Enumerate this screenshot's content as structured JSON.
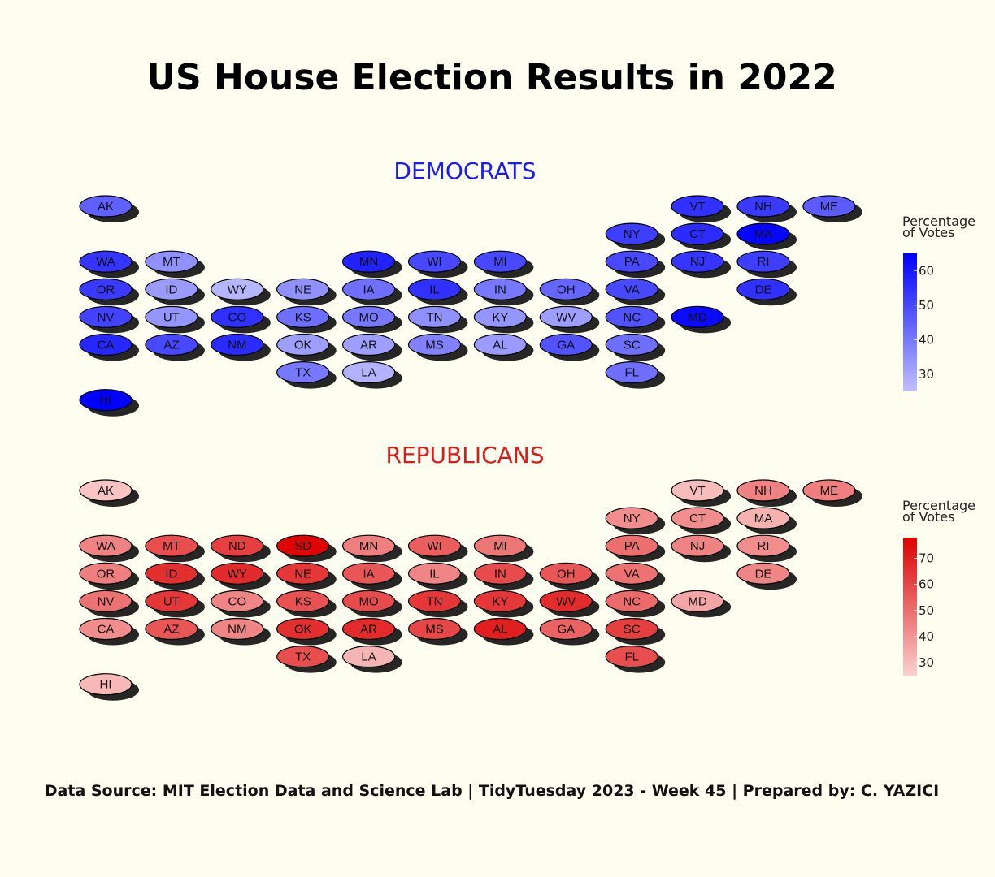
{
  "title": "US House Election Results in 2022",
  "footer": "Data Source: MIT Election Data and Science Lab | TidyTuesday 2023 - Week 45 | Prepared by: C. YAZICI",
  "chart_data": [
    {
      "type": "heatmap",
      "title": "DEMOCRATS",
      "title_color": "#1a1aff",
      "legend": {
        "title": "Percentage of Votes",
        "ticks": [
          30,
          40,
          50,
          60
        ],
        "range": [
          25,
          65
        ],
        "color_low": "#c0c0ff",
        "color_high": "#0000ff"
      },
      "states": [
        {
          "state": "AK",
          "col": 0,
          "row": 0,
          "value": 45
        },
        {
          "state": "VT",
          "col": 9,
          "row": 0,
          "value": 55
        },
        {
          "state": "NH",
          "col": 10,
          "row": 0,
          "value": 53
        },
        {
          "state": "ME",
          "col": 11,
          "row": 0,
          "value": 46
        },
        {
          "state": "NY",
          "col": 8,
          "row": 1,
          "value": 52
        },
        {
          "state": "CT",
          "col": 9,
          "row": 1,
          "value": 56
        },
        {
          "state": "MA",
          "col": 10,
          "row": 1,
          "value": 64
        },
        {
          "state": "WA",
          "col": 0,
          "row": 2,
          "value": 54
        },
        {
          "state": "MT",
          "col": 1,
          "row": 2,
          "value": 35
        },
        {
          "state": "MN",
          "col": 4,
          "row": 2,
          "value": 58
        },
        {
          "state": "WI",
          "col": 5,
          "row": 2,
          "value": 50
        },
        {
          "state": "MI",
          "col": 6,
          "row": 2,
          "value": 50
        },
        {
          "state": "PA",
          "col": 8,
          "row": 2,
          "value": 50
        },
        {
          "state": "NJ",
          "col": 9,
          "row": 2,
          "value": 54
        },
        {
          "state": "RI",
          "col": 10,
          "row": 2,
          "value": 52
        },
        {
          "state": "OR",
          "col": 0,
          "row": 3,
          "value": 53
        },
        {
          "state": "ID",
          "col": 1,
          "row": 3,
          "value": 33
        },
        {
          "state": "WY",
          "col": 2,
          "row": 3,
          "value": 27
        },
        {
          "state": "NE",
          "col": 3,
          "row": 3,
          "value": 35
        },
        {
          "state": "IA",
          "col": 4,
          "row": 3,
          "value": 42
        },
        {
          "state": "IL",
          "col": 5,
          "row": 3,
          "value": 55
        },
        {
          "state": "IN",
          "col": 6,
          "row": 3,
          "value": 40
        },
        {
          "state": "OH",
          "col": 7,
          "row": 3,
          "value": 44
        },
        {
          "state": "VA",
          "col": 8,
          "row": 3,
          "value": 50
        },
        {
          "state": "DE",
          "col": 10,
          "row": 3,
          "value": 55
        },
        {
          "state": "NV",
          "col": 0,
          "row": 4,
          "value": 51
        },
        {
          "state": "UT",
          "col": 1,
          "row": 4,
          "value": 34
        },
        {
          "state": "CO",
          "col": 2,
          "row": 4,
          "value": 55
        },
        {
          "state": "KS",
          "col": 3,
          "row": 4,
          "value": 42
        },
        {
          "state": "MO",
          "col": 4,
          "row": 4,
          "value": 40
        },
        {
          "state": "TN",
          "col": 5,
          "row": 4,
          "value": 35
        },
        {
          "state": "KY",
          "col": 6,
          "row": 4,
          "value": 34
        },
        {
          "state": "WV",
          "col": 7,
          "row": 4,
          "value": 32
        },
        {
          "state": "NC",
          "col": 8,
          "row": 4,
          "value": 48
        },
        {
          "state": "MD",
          "col": 9,
          "row": 4,
          "value": 63
        },
        {
          "state": "CA",
          "col": 0,
          "row": 5,
          "value": 57
        },
        {
          "state": "AZ",
          "col": 1,
          "row": 5,
          "value": 50
        },
        {
          "state": "NM",
          "col": 2,
          "row": 5,
          "value": 56
        },
        {
          "state": "OK",
          "col": 3,
          "row": 5,
          "value": 32
        },
        {
          "state": "AR",
          "col": 4,
          "row": 5,
          "value": 32
        },
        {
          "state": "MS",
          "col": 5,
          "row": 5,
          "value": 38
        },
        {
          "state": "AL",
          "col": 6,
          "row": 5,
          "value": 33
        },
        {
          "state": "GA",
          "col": 7,
          "row": 5,
          "value": 48
        },
        {
          "state": "SC",
          "col": 8,
          "row": 5,
          "value": 42
        },
        {
          "state": "TX",
          "col": 3,
          "row": 6,
          "value": 40
        },
        {
          "state": "LA",
          "col": 4,
          "row": 6,
          "value": 28
        },
        {
          "state": "FL",
          "col": 8,
          "row": 6,
          "value": 42
        },
        {
          "state": "HI",
          "col": 0,
          "row": 7,
          "value": 65
        }
      ]
    },
    {
      "type": "heatmap",
      "title": "REPUBLICANS",
      "title_color": "#dd1a1a",
      "legend": {
        "title": "Percentage of Votes",
        "ticks": [
          30,
          40,
          50,
          60,
          70
        ],
        "range": [
          25,
          78
        ],
        "color_low": "#fad0d0",
        "color_high": "#dd0000"
      },
      "states": [
        {
          "state": "AK",
          "col": 0,
          "row": 0,
          "value": 28
        },
        {
          "state": "VT",
          "col": 9,
          "row": 0,
          "value": 30
        },
        {
          "state": "NH",
          "col": 10,
          "row": 0,
          "value": 45
        },
        {
          "state": "ME",
          "col": 11,
          "row": 0,
          "value": 46
        },
        {
          "state": "NY",
          "col": 8,
          "row": 1,
          "value": 42
        },
        {
          "state": "CT",
          "col": 9,
          "row": 1,
          "value": 42
        },
        {
          "state": "MA",
          "col": 10,
          "row": 1,
          "value": 33
        },
        {
          "state": "WA",
          "col": 0,
          "row": 2,
          "value": 45
        },
        {
          "state": "MT",
          "col": 1,
          "row": 2,
          "value": 58
        },
        {
          "state": "ND",
          "col": 2,
          "row": 2,
          "value": 62
        },
        {
          "state": "SD",
          "col": 3,
          "row": 2,
          "value": 77
        },
        {
          "state": "MN",
          "col": 4,
          "row": 2,
          "value": 46
        },
        {
          "state": "WI",
          "col": 5,
          "row": 2,
          "value": 54
        },
        {
          "state": "MI",
          "col": 6,
          "row": 2,
          "value": 48
        },
        {
          "state": "PA",
          "col": 8,
          "row": 2,
          "value": 50
        },
        {
          "state": "NJ",
          "col": 9,
          "row": 2,
          "value": 45
        },
        {
          "state": "RI",
          "col": 10,
          "row": 2,
          "value": 42
        },
        {
          "state": "OR",
          "col": 0,
          "row": 3,
          "value": 46
        },
        {
          "state": "ID",
          "col": 1,
          "row": 3,
          "value": 66
        },
        {
          "state": "WY",
          "col": 2,
          "row": 3,
          "value": 67
        },
        {
          "state": "NE",
          "col": 3,
          "row": 3,
          "value": 64
        },
        {
          "state": "IA",
          "col": 4,
          "row": 3,
          "value": 56
        },
        {
          "state": "IL",
          "col": 5,
          "row": 3,
          "value": 44
        },
        {
          "state": "IN",
          "col": 6,
          "row": 3,
          "value": 59
        },
        {
          "state": "OH",
          "col": 7,
          "row": 3,
          "value": 56
        },
        {
          "state": "VA",
          "col": 8,
          "row": 3,
          "value": 49
        },
        {
          "state": "DE",
          "col": 10,
          "row": 3,
          "value": 44
        },
        {
          "state": "NV",
          "col": 0,
          "row": 4,
          "value": 49
        },
        {
          "state": "UT",
          "col": 1,
          "row": 4,
          "value": 64
        },
        {
          "state": "CO",
          "col": 2,
          "row": 4,
          "value": 44
        },
        {
          "state": "KS",
          "col": 3,
          "row": 4,
          "value": 57
        },
        {
          "state": "MO",
          "col": 4,
          "row": 4,
          "value": 59
        },
        {
          "state": "TN",
          "col": 5,
          "row": 4,
          "value": 64
        },
        {
          "state": "KY",
          "col": 6,
          "row": 4,
          "value": 64
        },
        {
          "state": "WV",
          "col": 7,
          "row": 4,
          "value": 67
        },
        {
          "state": "NC",
          "col": 8,
          "row": 4,
          "value": 51
        },
        {
          "state": "MD",
          "col": 9,
          "row": 4,
          "value": 36
        },
        {
          "state": "CA",
          "col": 0,
          "row": 5,
          "value": 42
        },
        {
          "state": "AZ",
          "col": 1,
          "row": 5,
          "value": 56
        },
        {
          "state": "NM",
          "col": 2,
          "row": 5,
          "value": 44
        },
        {
          "state": "OK",
          "col": 3,
          "row": 5,
          "value": 66
        },
        {
          "state": "AR",
          "col": 4,
          "row": 5,
          "value": 67
        },
        {
          "state": "MS",
          "col": 5,
          "row": 5,
          "value": 60
        },
        {
          "state": "AL",
          "col": 6,
          "row": 5,
          "value": 70
        },
        {
          "state": "GA",
          "col": 7,
          "row": 5,
          "value": 53
        },
        {
          "state": "SC",
          "col": 8,
          "row": 5,
          "value": 62
        },
        {
          "state": "TX",
          "col": 3,
          "row": 6,
          "value": 58
        },
        {
          "state": "LA",
          "col": 4,
          "row": 6,
          "value": 32
        },
        {
          "state": "FL",
          "col": 8,
          "row": 6,
          "value": 58
        },
        {
          "state": "HI",
          "col": 0,
          "row": 7,
          "value": 31
        }
      ]
    }
  ]
}
